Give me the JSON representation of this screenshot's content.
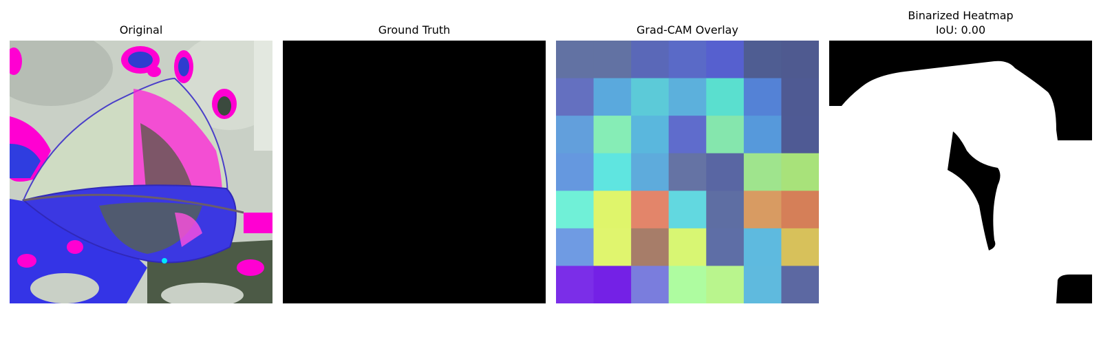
{
  "panels": [
    {
      "title": "Original",
      "image": "leaf photo with false-color (magenta/blue) enhancement"
    },
    {
      "title": "Ground Truth",
      "image": "all-black mask"
    },
    {
      "title": "Grad-CAM Overlay",
      "grid_size": 7,
      "colors": [
        [
          "#6272a3",
          "#6272a3",
          "#5a68b8",
          "#5a6ac7",
          "#5660cf",
          "#4f5d92",
          "#4f5a90"
        ],
        [
          "#6470c0",
          "#5aa9dd",
          "#5ccad8",
          "#5cb0dc",
          "#5adfcf",
          "#5482d6",
          "#4f5a93"
        ],
        [
          "#629fdc",
          "#86edb6",
          "#5ab7dd",
          "#5f6ccc",
          "#85e6ad",
          "#5699db",
          "#4f5a94"
        ],
        [
          "#6598df",
          "#5fe5e0",
          "#5eabdc",
          "#6573a4",
          "#5966a3",
          "#9fe48d",
          "#a8e27a"
        ],
        [
          "#70f0d7",
          "#dff56b",
          "#e3856a",
          "#62d8e0",
          "#5e6ea3",
          "#d89b62",
          "#d57f58"
        ],
        [
          "#6f9be3",
          "#e0f56e",
          "#a77d69",
          "#d8f673",
          "#5e6ea6",
          "#5ebadf",
          "#d7c15b"
        ],
        [
          "#7b2ee8",
          "#7421e6",
          "#7a7ddd",
          "#aefca0",
          "#b9f58d",
          "#5fbade",
          "#5c68a2"
        ]
      ]
    },
    {
      "title_line1": "Binarized Heatmap",
      "title_line2": "IoU: 0.00",
      "image": "white mask on black"
    }
  ]
}
